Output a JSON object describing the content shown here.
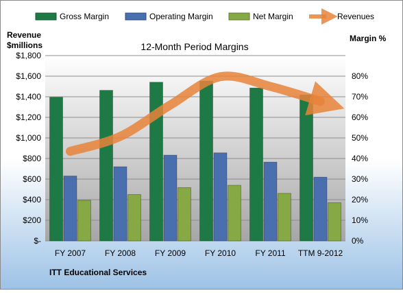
{
  "chart_data": {
    "type": "bar",
    "title": "12-Month Period Margins",
    "footer": "ITT Educational Services",
    "left_axis_label_line1": "Revenue",
    "left_axis_label_line2": "$millions",
    "right_axis_label": "Margin %",
    "categories": [
      "FY 2007",
      "FY 2008",
      "FY 2009",
      "FY 2010",
      "FY 2011",
      "TTM 9-2012"
    ],
    "left_ticks": [
      "$-",
      "$200",
      "$400",
      "$600",
      "$800",
      "$1,000",
      "$1,200",
      "$1,400",
      "$1,600",
      "$1,800"
    ],
    "right_ticks": [
      "0%",
      "10%",
      "20%",
      "30%",
      "40%",
      "50%",
      "60%",
      "70%",
      "80%"
    ],
    "ylim_left": [
      0,
      1800
    ],
    "ylim_right": [
      0,
      80
    ],
    "series": [
      {
        "name": "Gross Margin",
        "kind": "bar",
        "axis": "right",
        "color": "#1e7a45",
        "values": [
          62,
          65,
          68.5,
          69,
          66,
          63
        ]
      },
      {
        "name": "Operating Margin",
        "kind": "bar",
        "axis": "right",
        "color": "#4a6fae",
        "values": [
          28,
          32,
          37,
          38,
          34,
          27.5
        ]
      },
      {
        "name": "Net Margin",
        "kind": "bar",
        "axis": "right",
        "color": "#86a845",
        "values": [
          17.5,
          20,
          23,
          24,
          20.5,
          16.5
        ]
      },
      {
        "name": "Revenues",
        "kind": "line",
        "axis": "left",
        "color": "#e8833a",
        "values": [
          870,
          1015,
          1320,
          1595,
          1500,
          1355
        ]
      }
    ],
    "grid": true,
    "legend_position": "top"
  },
  "colors": {
    "outer_background_top": "#ffffff",
    "outer_background_bottom": "#9dc2e6",
    "plot_background_top": "#ffffff",
    "plot_background_bottom": "#a6a6a6"
  }
}
